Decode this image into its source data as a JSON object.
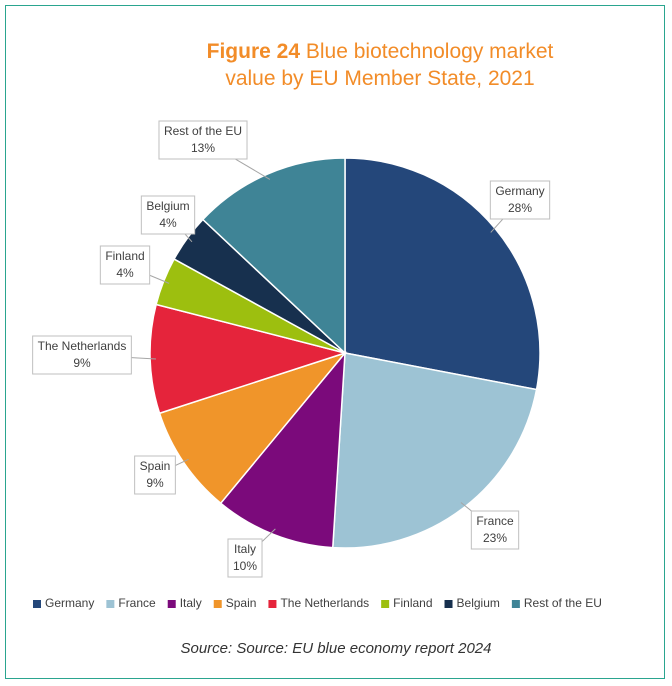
{
  "chart_data": {
    "type": "pie",
    "title_label": "Figure 24",
    "title": "Blue biotechnology market value by EU Member State, 2021",
    "categories": [
      "Germany",
      "France",
      "Italy",
      "Spain",
      "The Netherlands",
      "Finland",
      "Belgium",
      "Rest of the EU"
    ],
    "values": [
      28,
      23,
      10,
      9,
      9,
      4,
      4,
      13
    ],
    "value_labels": [
      "28%",
      "23%",
      "10%",
      "9%",
      "9%",
      "4%",
      "4%",
      "13%"
    ],
    "colors": [
      "#24477a",
      "#9dc3d4",
      "#7b0a7b",
      "#f0952a",
      "#e5243b",
      "#9dbf0f",
      "#17304e",
      "#3f8496"
    ],
    "legend": "bottom",
    "source": "Source: Source: EU blue economy report 2024"
  }
}
